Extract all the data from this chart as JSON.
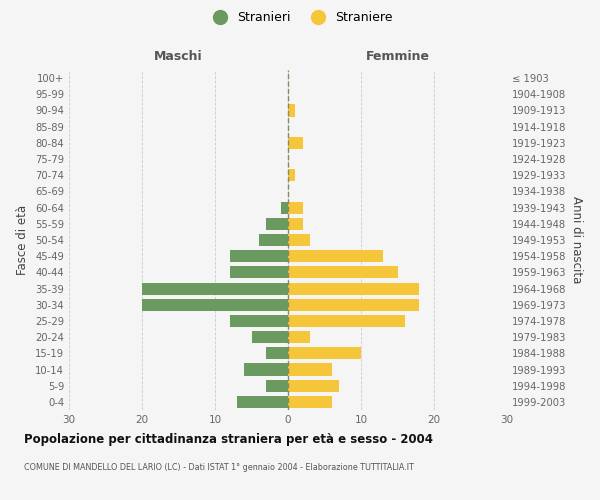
{
  "age_groups": [
    "100+",
    "95-99",
    "90-94",
    "85-89",
    "80-84",
    "75-79",
    "70-74",
    "65-69",
    "60-64",
    "55-59",
    "50-54",
    "45-49",
    "40-44",
    "35-39",
    "30-34",
    "25-29",
    "20-24",
    "15-19",
    "10-14",
    "5-9",
    "0-4"
  ],
  "birth_years": [
    "≤ 1903",
    "1904-1908",
    "1909-1913",
    "1914-1918",
    "1919-1923",
    "1924-1928",
    "1929-1933",
    "1934-1938",
    "1939-1943",
    "1944-1948",
    "1949-1953",
    "1954-1958",
    "1959-1963",
    "1964-1968",
    "1969-1973",
    "1974-1978",
    "1979-1983",
    "1984-1988",
    "1989-1993",
    "1994-1998",
    "1999-2003"
  ],
  "males": [
    0,
    0,
    0,
    0,
    0,
    0,
    0,
    0,
    1,
    3,
    4,
    8,
    8,
    20,
    20,
    8,
    5,
    3,
    6,
    3,
    7
  ],
  "females": [
    0,
    0,
    1,
    0,
    2,
    0,
    1,
    0,
    2,
    2,
    3,
    13,
    15,
    18,
    18,
    16,
    3,
    10,
    6,
    7,
    6
  ],
  "male_color": "#6a9a5f",
  "female_color": "#f5c53a",
  "bg_color": "#f5f5f5",
  "grid_color": "#cccccc",
  "title": "Popolazione per cittadinanza straniera per età e sesso - 2004",
  "subtitle": "COMUNE DI MANDELLO DEL LARIO (LC) - Dati ISTAT 1° gennaio 2004 - Elaborazione TUTTITALIA.IT",
  "xlabel_left": "Maschi",
  "xlabel_right": "Femmine",
  "ylabel_left": "Fasce di età",
  "ylabel_right": "Anni di nascita",
  "legend_male": "Stranieri",
  "legend_female": "Straniere",
  "xlim": 30
}
